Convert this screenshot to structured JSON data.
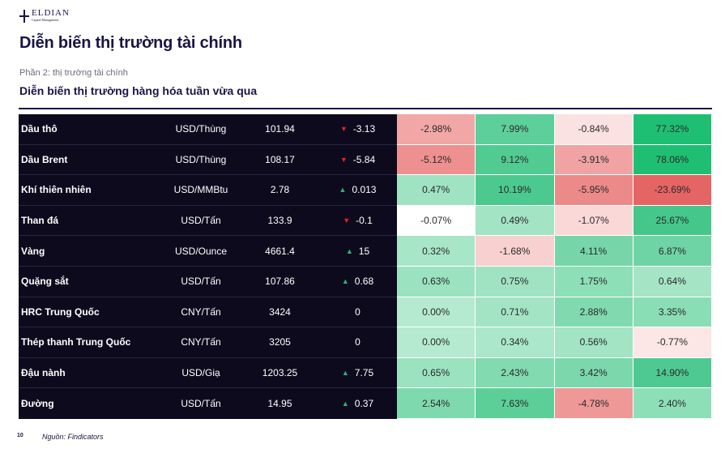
{
  "brand": {
    "name": "ELDIAN",
    "tagline": "Capital Management"
  },
  "page_title": "Diễn biến thị trường tài chính",
  "section_label": "Phần 2: thị trường tài chính",
  "subtitle": "Diễn biến thị trường hàng hóa tuần vừa qua",
  "rows": [
    {
      "name": "Dầu thô",
      "unit": "USD/Thùng",
      "price": "101.94",
      "dir": "down",
      "change": "-3.13",
      "pcts": [
        {
          "v": "-2.98%",
          "c": "#f2a7a7"
        },
        {
          "v": "7.99%",
          "c": "#5dcf9a"
        },
        {
          "v": "-0.84%",
          "c": "#fbe2e2"
        },
        {
          "v": "77.32%",
          "c": "#1fbf73"
        }
      ]
    },
    {
      "name": "Dầu Brent",
      "unit": "USD/Thùng",
      "price": "108.17",
      "dir": "down",
      "change": "-5.84",
      "pcts": [
        {
          "v": "-5.12%",
          "c": "#ee9090"
        },
        {
          "v": "9.12%",
          "c": "#52cb93"
        },
        {
          "v": "-3.91%",
          "c": "#f1a3a3"
        },
        {
          "v": "78.06%",
          "c": "#1fbf73"
        }
      ]
    },
    {
      "name": "Khí thiên nhiên",
      "unit": "USD/MMBtu",
      "price": "2.78",
      "dir": "up",
      "change": "0.013",
      "pcts": [
        {
          "v": "0.47%",
          "c": "#9fe3c2"
        },
        {
          "v": "10.19%",
          "c": "#4cc98f"
        },
        {
          "v": "-5.95%",
          "c": "#ec8a8a"
        },
        {
          "v": "-23.69%",
          "c": "#e56464"
        }
      ]
    },
    {
      "name": "Than đá",
      "unit": "USD/Tấn",
      "price": "133.9",
      "dir": "down",
      "change": "-0.1",
      "pcts": [
        {
          "v": "-0.07%",
          "c": "#ffffff"
        },
        {
          "v": "0.49%",
          "c": "#a3e4c5"
        },
        {
          "v": "-1.07%",
          "c": "#fad8d8"
        },
        {
          "v": "25.67%",
          "c": "#45c78b"
        }
      ]
    },
    {
      "name": "Vàng",
      "unit": "USD/Ounce",
      "price": "4661.4",
      "dir": "up",
      "change": "15",
      "pcts": [
        {
          "v": "0.32%",
          "c": "#a7e6c7"
        },
        {
          "v": "-1.68%",
          "c": "#f8d0d0"
        },
        {
          "v": "4.11%",
          "c": "#76d6a9"
        },
        {
          "v": "6.87%",
          "c": "#6fd4a5"
        }
      ]
    },
    {
      "name": "Quặng sắt",
      "unit": "USD/Tấn",
      "price": "107.86",
      "dir": "up",
      "change": "0.68",
      "pcts": [
        {
          "v": "0.63%",
          "c": "#9be2c0"
        },
        {
          "v": "0.75%",
          "c": "#a0e3c3"
        },
        {
          "v": "1.75%",
          "c": "#8ddfb8"
        },
        {
          "v": "0.64%",
          "c": "#a5e5c6"
        }
      ]
    },
    {
      "name": "HRC Trung Quốc",
      "unit": "CNY/Tấn",
      "price": "3424",
      "dir": "none",
      "change": "0",
      "pcts": [
        {
          "v": "0.00%",
          "c": "#b5ead0"
        },
        {
          "v": "0.71%",
          "c": "#a2e4c4"
        },
        {
          "v": "2.88%",
          "c": "#80d9af"
        },
        {
          "v": "3.35%",
          "c": "#8adeb6"
        }
      ]
    },
    {
      "name": "Thép thanh Trung Quốc",
      "unit": "CNY/Tấn",
      "price": "3205",
      "dir": "none",
      "change": "0",
      "pcts": [
        {
          "v": "0.00%",
          "c": "#b5ead0"
        },
        {
          "v": "0.34%",
          "c": "#abe7ca"
        },
        {
          "v": "0.56%",
          "c": "#a2e4c4"
        },
        {
          "v": "-0.77%",
          "c": "#fce6e6"
        }
      ]
    },
    {
      "name": "Đậu nành",
      "unit": "USD/Giạ",
      "price": "1203.25",
      "dir": "up",
      "change": "7.75",
      "pcts": [
        {
          "v": "0.65%",
          "c": "#9be2c0"
        },
        {
          "v": "2.43%",
          "c": "#82dab0"
        },
        {
          "v": "3.42%",
          "c": "#7bd8ac"
        },
        {
          "v": "14.90%",
          "c": "#4ec992"
        }
      ]
    },
    {
      "name": "Đường",
      "unit": "USD/Tấn",
      "price": "14.95",
      "dir": "up",
      "change": "0.37",
      "pcts": [
        {
          "v": "2.54%",
          "c": "#7fd9ae"
        },
        {
          "v": "7.63%",
          "c": "#5ccf99"
        },
        {
          "v": "-4.78%",
          "c": "#ef9898"
        },
        {
          "v": "2.40%",
          "c": "#8ddfb8"
        }
      ]
    }
  ],
  "footer": {
    "page_number": "10",
    "source": "Nguồn: Findicators"
  }
}
